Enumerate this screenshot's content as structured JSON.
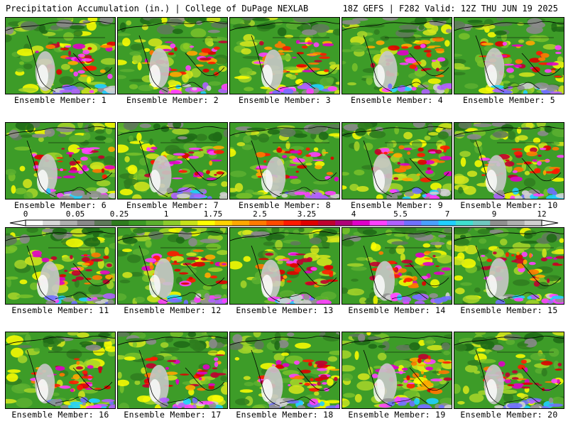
{
  "header": {
    "title": "Precipitation Accumulation (in.) | College of DuPage NEXLAB",
    "run_info": "18Z GEFS | F282 Valid: 12Z THU JUN 19 2025"
  },
  "members": [
    {
      "label": "Ensemble Member: 1"
    },
    {
      "label": "Ensemble Member: 2"
    },
    {
      "label": "Ensemble Member: 3"
    },
    {
      "label": "Ensemble Member: 4"
    },
    {
      "label": "Ensemble Member: 5"
    },
    {
      "label": "Ensemble Member: 6"
    },
    {
      "label": "Ensemble Member: 7"
    },
    {
      "label": "Ensemble Member: 8"
    },
    {
      "label": "Ensemble Member: 9"
    },
    {
      "label": "Ensemble Member: 10"
    },
    {
      "label": "Ensemble Member: 11"
    },
    {
      "label": "Ensemble Member: 12"
    },
    {
      "label": "Ensemble Member: 13"
    },
    {
      "label": "Ensemble Member: 14"
    },
    {
      "label": "Ensemble Member: 15"
    },
    {
      "label": "Ensemble Member: 16"
    },
    {
      "label": "Ensemble Member: 17"
    },
    {
      "label": "Ensemble Member: 18"
    },
    {
      "label": "Ensemble Member: 19"
    },
    {
      "label": "Ensemble Member: 20"
    }
  ],
  "colorbar": {
    "tick_labels": [
      "0",
      "0.05",
      "0.25",
      "1",
      "1.75",
      "2.5",
      "3.25",
      "4",
      "5.5",
      "7",
      "9",
      "12"
    ],
    "colors": [
      "#ffffff",
      "#d9d9d9",
      "#b0b0b0",
      "#8a8a8a",
      "#5f7a5a",
      "#2f7d1e",
      "#3c9a26",
      "#5cb030",
      "#8ccb2e",
      "#c8e21a",
      "#ffff00",
      "#ffd200",
      "#ffa800",
      "#ff7a00",
      "#ff4a00",
      "#ff1a00",
      "#e00000",
      "#c00030",
      "#b0007a",
      "#e000c8",
      "#ff40ff",
      "#b060ff",
      "#7070ff",
      "#4aa0ff",
      "#20d0ff",
      "#40e0d0",
      "#70c8c0",
      "#909090",
      "#b0b0b0",
      "#d0d0d0"
    ]
  },
  "palette": {
    "background_green": "#3b9a2a",
    "land_outline": "#000000"
  }
}
